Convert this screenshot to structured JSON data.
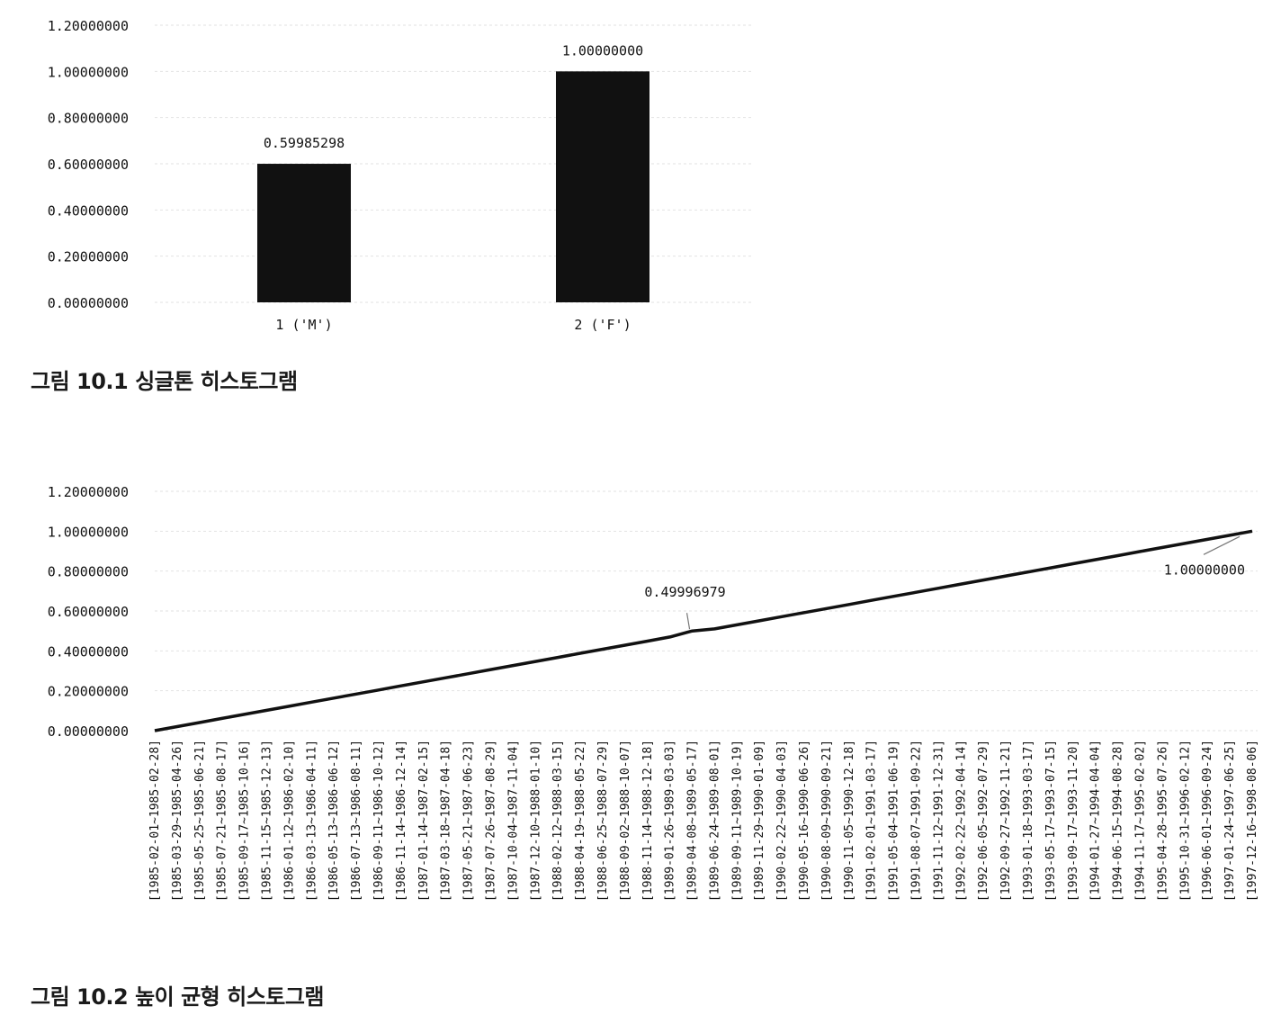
{
  "chart_data": [
    {
      "type": "bar",
      "categories": [
        "1 ('M')",
        "2 ('F')"
      ],
      "values": [
        0.59985298,
        1.0
      ],
      "data_labels": [
        "0.59985298",
        "1.00000000"
      ],
      "y_ticks": [
        "0.00000000",
        "0.20000000",
        "0.40000000",
        "0.60000000",
        "0.80000000",
        "1.00000000",
        "1.20000000"
      ],
      "ylim": [
        0,
        1.2
      ],
      "grid": true,
      "color": "#111111",
      "caption": "그림 10.1 싱글톤 히스토그램"
    },
    {
      "type": "line",
      "categories": [
        "[1985-02-01~1985-02-28]",
        "[1985-03-29~1985-04-26]",
        "[1985-05-25~1985-06-21]",
        "[1985-07-21~1985-08-17]",
        "[1985-09-17~1985-10-16]",
        "[1985-11-15~1985-12-13]",
        "[1986-01-12~1986-02-10]",
        "[1986-03-13~1986-04-11]",
        "[1986-05-13~1986-06-12]",
        "[1986-07-13~1986-08-11]",
        "[1986-09-11~1986-10-12]",
        "[1986-11-14~1986-12-14]",
        "[1987-01-14~1987-02-15]",
        "[1987-03-18~1987-04-18]",
        "[1987-05-21~1987-06-23]",
        "[1987-07-26~1987-08-29]",
        "[1987-10-04~1987-11-04]",
        "[1987-12-10~1988-01-10]",
        "[1988-02-12~1988-03-15]",
        "[1988-04-19~1988-05-22]",
        "[1988-06-25~1988-07-29]",
        "[1988-09-02~1988-10-07]",
        "[1988-11-14~1988-12-18]",
        "[1989-01-26~1989-03-03]",
        "[1989-04-08~1989-05-17]",
        "[1989-06-24~1989-08-01]",
        "[1989-09-11~1989-10-19]",
        "[1989-11-29~1990-01-09]",
        "[1990-02-22~1990-04-03]",
        "[1990-05-16~1990-06-26]",
        "[1990-08-09~1990-09-21]",
        "[1990-11-05~1990-12-18]",
        "[1991-02-01~1991-03-17]",
        "[1991-05-04~1991-06-19]",
        "[1991-08-07~1991-09-22]",
        "[1991-11-12~1991-12-31]",
        "[1992-02-22~1992-04-14]",
        "[1992-06-05~1992-07-29]",
        "[1992-09-27~1992-11-21]",
        "[1993-01-18~1993-03-17]",
        "[1993-05-17~1993-07-15]",
        "[1993-09-17~1993-11-20]",
        "[1994-01-27~1994-04-04]",
        "[1994-06-15~1994-08-28]",
        "[1994-11-17~1995-02-02]",
        "[1995-04-28~1995-07-26]",
        "[1995-10-31~1996-02-12]",
        "[1996-06-01~1996-09-24]",
        "[1997-01-24~1997-06-25]",
        "[1997-12-16~1998-08-06]"
      ],
      "values": [
        0.0,
        0.0204,
        0.0408,
        0.0612,
        0.0816,
        0.102,
        0.1224,
        0.1429,
        0.1633,
        0.1837,
        0.2041,
        0.2245,
        0.2449,
        0.2653,
        0.2857,
        0.3061,
        0.3265,
        0.3469,
        0.3673,
        0.3878,
        0.4082,
        0.4286,
        0.449,
        0.4694,
        0.49996979,
        0.5102,
        0.5306,
        0.551,
        0.5714,
        0.5918,
        0.6122,
        0.6327,
        0.6531,
        0.6735,
        0.6939,
        0.7143,
        0.7347,
        0.7551,
        0.7755,
        0.7959,
        0.8163,
        0.8367,
        0.8571,
        0.8776,
        0.898,
        0.9184,
        0.9388,
        0.9592,
        0.9796,
        1.0
      ],
      "annotations": [
        {
          "text": "0.49996979",
          "value": 0.49996979,
          "category_index": 24
        },
        {
          "text": "1.00000000",
          "value": 1.0,
          "category_index": 49
        }
      ],
      "y_ticks": [
        "0.00000000",
        "0.20000000",
        "0.40000000",
        "0.60000000",
        "0.80000000",
        "1.00000000",
        "1.20000000"
      ],
      "ylim": [
        0,
        1.2
      ],
      "grid": true,
      "color": "#111111",
      "caption": "그림 10.2 높이 균형 히스토그램"
    }
  ]
}
